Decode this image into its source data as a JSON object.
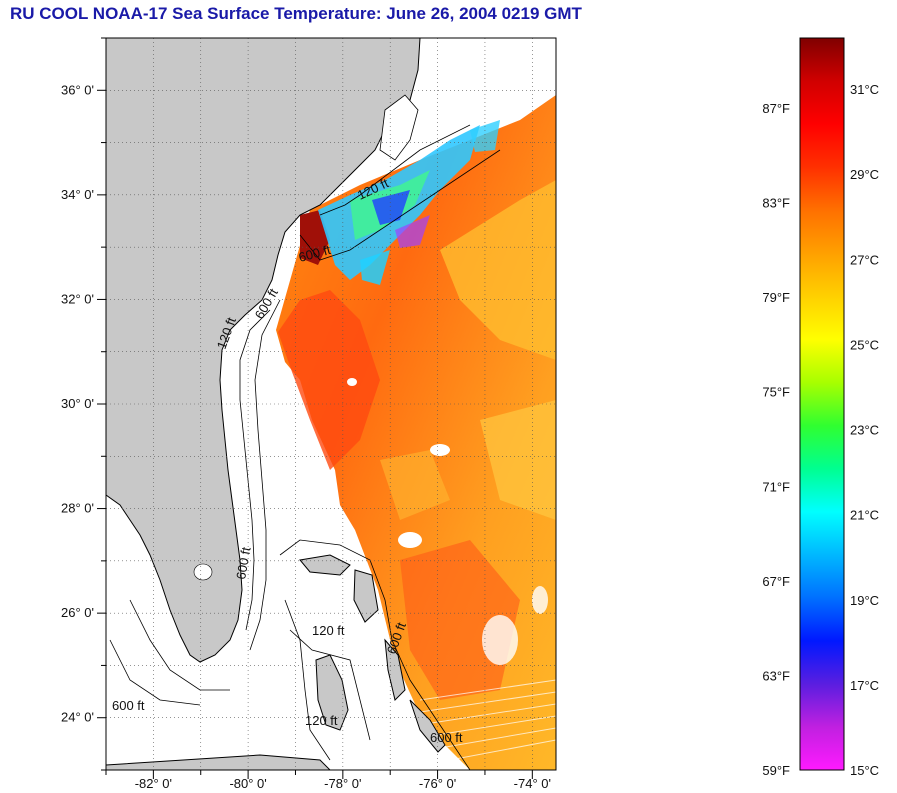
{
  "title": "RU COOL  NOAA-17  Sea Surface Temperature:  June 26, 2004 0219 GMT",
  "map": {
    "lon_range": [
      -83.0,
      -73.5
    ],
    "lat_range": [
      23.0,
      37.0
    ],
    "lat_ticks": [
      {
        "value": 36,
        "label": "36° 0'"
      },
      {
        "value": 34,
        "label": "34° 0'"
      },
      {
        "value": 32,
        "label": "32° 0'"
      },
      {
        "value": 30,
        "label": "30° 0'"
      },
      {
        "value": 28,
        "label": "28° 0'"
      },
      {
        "value": 26,
        "label": "26° 0'"
      },
      {
        "value": 24,
        "label": "24° 0'"
      }
    ],
    "lon_ticks": [
      {
        "value": -82,
        "label": "-82° 0'"
      },
      {
        "value": -80,
        "label": "-80° 0'"
      },
      {
        "value": -78,
        "label": "-78° 0'"
      },
      {
        "value": -76,
        "label": "-76° 0'"
      },
      {
        "value": -74,
        "label": "-74° 0'"
      }
    ],
    "contour_labels": [
      "120 ft",
      "600 ft"
    ],
    "land_color": "#c8c8c8",
    "grid": true
  },
  "colorbar": {
    "min_c": 15,
    "max_c": 32.2,
    "celsius_labels": [
      "31°C",
      "29°C",
      "27°C",
      "25°C",
      "23°C",
      "21°C",
      "19°C",
      "17°C",
      "15°C"
    ],
    "fahrenheit_labels": [
      "87°F",
      "83°F",
      "79°F",
      "75°F",
      "71°F",
      "67°F",
      "63°F",
      "59°F"
    ],
    "stops": [
      "#ff1aff",
      "#c020e0",
      "#5a1ee0",
      "#0018ff",
      "#0070ff",
      "#00b8ff",
      "#00ffff",
      "#00ff90",
      "#30ff30",
      "#a8ff00",
      "#ffff00",
      "#ffd000",
      "#ffa000",
      "#ff7000",
      "#ff3000",
      "#ff0000",
      "#d00000",
      "#800000"
    ]
  }
}
